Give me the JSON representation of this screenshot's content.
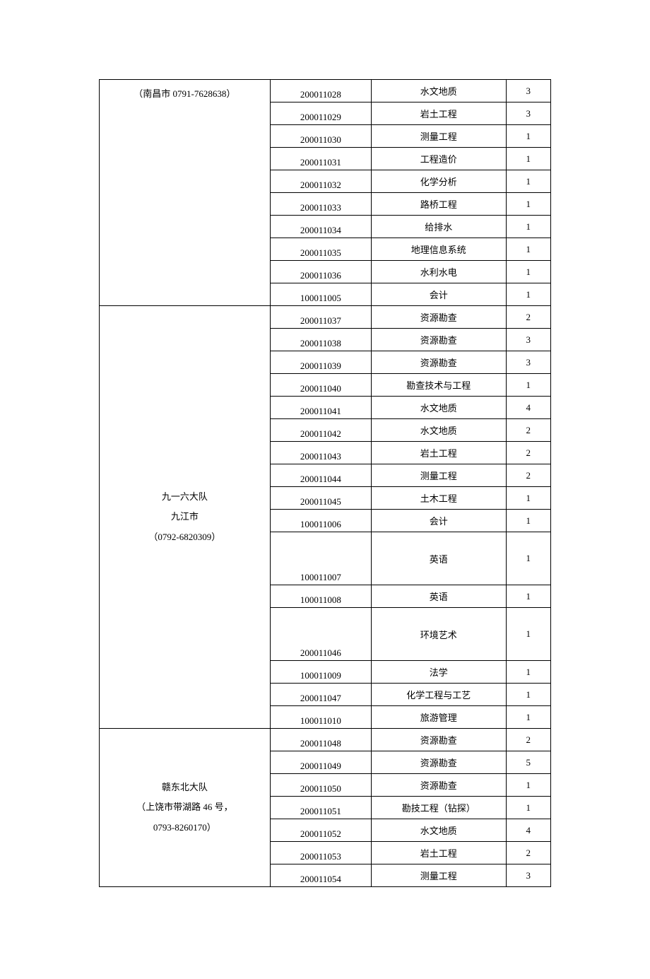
{
  "groups": [
    {
      "label_lines": [
        "（南昌市 0791-7628638）"
      ],
      "label_valign": "top",
      "rows": [
        {
          "code": "200011028",
          "name": "水文地质",
          "count": "3"
        },
        {
          "code": "200011029",
          "name": "岩土工程",
          "count": "3"
        },
        {
          "code": "200011030",
          "name": "测量工程",
          "count": "1"
        },
        {
          "code": "200011031",
          "name": "工程造价",
          "count": "1"
        },
        {
          "code": "200011032",
          "name": "化学分析",
          "count": "1"
        },
        {
          "code": "200011033",
          "name": "路桥工程",
          "count": "1"
        },
        {
          "code": "200011034",
          "name": "给排水",
          "count": "1"
        },
        {
          "code": "200011035",
          "name": "地理信息系统",
          "count": "1"
        },
        {
          "code": "200011036",
          "name": "水利水电",
          "count": "1"
        },
        {
          "code": "100011005",
          "name": "会计",
          "count": "1"
        }
      ]
    },
    {
      "label_lines": [
        "九一六大队",
        "九江市",
        "（0792-6820309）"
      ],
      "label_valign": "middle",
      "rows": [
        {
          "code": "200011037",
          "name": "资源勘查",
          "count": "2"
        },
        {
          "code": "200011038",
          "name": "资源勘查",
          "count": "3"
        },
        {
          "code": "200011039",
          "name": "资源勘查",
          "count": "3"
        },
        {
          "code": "200011040",
          "name": "勘查技术与工程",
          "count": "1"
        },
        {
          "code": "200011041",
          "name": "水文地质",
          "count": "4"
        },
        {
          "code": "200011042",
          "name": "水文地质",
          "count": "2"
        },
        {
          "code": "200011043",
          "name": "岩土工程",
          "count": "2"
        },
        {
          "code": "200011044",
          "name": "测量工程",
          "count": "2"
        },
        {
          "code": "200011045",
          "name": "土木工程",
          "count": "1"
        },
        {
          "code": "100011006",
          "name": "会计",
          "count": "1"
        },
        {
          "code": "100011007",
          "name": "英语",
          "count": "1",
          "tall": true
        },
        {
          "code": "100011008",
          "name": "英语",
          "count": "1"
        },
        {
          "code": "200011046",
          "name": "环境艺术",
          "count": "1",
          "tall": true
        },
        {
          "code": "100011009",
          "name": "法学",
          "count": "1"
        },
        {
          "code": "200011047",
          "name": "化学工程与工艺",
          "count": "1"
        },
        {
          "code": "100011010",
          "name": "旅游管理",
          "count": "1"
        }
      ]
    },
    {
      "label_lines": [
        "赣东北大队",
        "（上饶市带湖路 46 号，",
        "0793-8260170）"
      ],
      "label_valign": "middle",
      "rows": [
        {
          "code": "200011048",
          "name": "资源勘查",
          "count": "2"
        },
        {
          "code": "200011049",
          "name": "资源勘查",
          "count": "5"
        },
        {
          "code": "200011050",
          "name": "资源勘查",
          "count": "1"
        },
        {
          "code": "200011051",
          "name": "勘技工程（钻探）",
          "count": "1"
        },
        {
          "code": "200011052",
          "name": "水文地质",
          "count": "4"
        },
        {
          "code": "200011053",
          "name": "岩土工程",
          "count": "2"
        },
        {
          "code": "200011054",
          "name": "测量工程",
          "count": "3"
        }
      ]
    }
  ]
}
